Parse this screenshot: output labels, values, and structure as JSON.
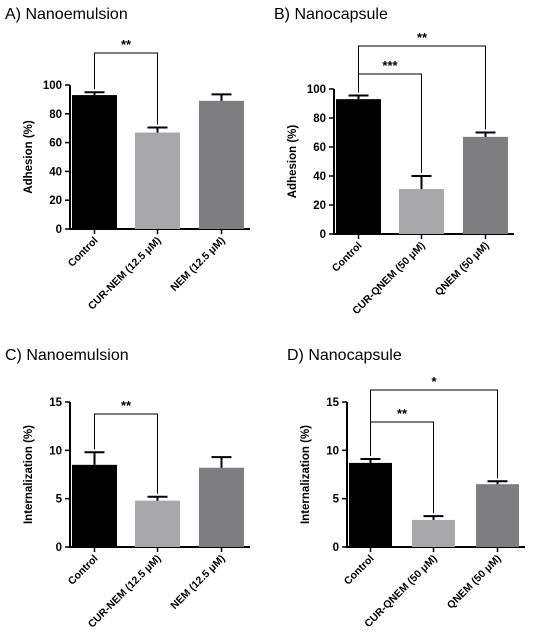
{
  "chart_data": [
    {
      "type": "bar",
      "title": "A) Nanoemulsion",
      "ylabel": "Adhesion (%)",
      "xlabel": "",
      "ylim": [
        0,
        100
      ],
      "yticks": [
        "0",
        "20",
        "40",
        "60",
        "80",
        "100"
      ],
      "categories": [
        "Control",
        "CUR-NEM (12.5 μM)",
        "NEM (12.5 μM)"
      ],
      "values": [
        93,
        67,
        89
      ],
      "errors": [
        2,
        3.5,
        4.5
      ],
      "bar_colors": [
        "#000000",
        "#a8a8ab",
        "#7e7e80"
      ],
      "significance": [
        {
          "from": 0,
          "to": 1,
          "label": "**"
        }
      ]
    },
    {
      "type": "bar",
      "title": "B) Nanocapsule",
      "ylabel": "Adhesion (%)",
      "xlabel": "",
      "ylim": [
        0,
        100
      ],
      "yticks": [
        "0",
        "20",
        "40",
        "60",
        "80",
        "100"
      ],
      "categories": [
        "Control",
        "CUR-QNEM (50 μM)",
        "QNEM (50 μM)"
      ],
      "values": [
        93,
        31,
        67
      ],
      "errors": [
        2.5,
        9,
        3
      ],
      "bar_colors": [
        "#000000",
        "#a8a8ab",
        "#7e7e80"
      ],
      "significance": [
        {
          "from": 0,
          "to": 1,
          "label": "***"
        },
        {
          "from": 0,
          "to": 2,
          "label": "**"
        }
      ]
    },
    {
      "type": "bar",
      "title": "C) Nanoemulsion",
      "ylabel": "Internalization (%)",
      "xlabel": "",
      "ylim": [
        0,
        15
      ],
      "yticks": [
        "0",
        "5",
        "10",
        "15"
      ],
      "categories": [
        "Control",
        "CUR-NEM (12.5 μM)",
        "NEM (12.5 μM)"
      ],
      "values": [
        8.5,
        4.8,
        8.2
      ],
      "errors": [
        1.3,
        0.4,
        1.1
      ],
      "bar_colors": [
        "#000000",
        "#a8a8ab",
        "#7e7e80"
      ],
      "significance": [
        {
          "from": 0,
          "to": 1,
          "label": "**"
        }
      ]
    },
    {
      "type": "bar",
      "title": "D) Nanocapsule",
      "ylabel": "Internalization (%)",
      "xlabel": "",
      "ylim": [
        0,
        15
      ],
      "yticks": [
        "0",
        "5",
        "10",
        "15"
      ],
      "categories": [
        "Control",
        "CUR-QNEM (50 μM)",
        "QNEM (50 μM)"
      ],
      "values": [
        8.7,
        2.8,
        6.5
      ],
      "errors": [
        0.4,
        0.4,
        0.3
      ],
      "bar_colors": [
        "#000000",
        "#a8a8ab",
        "#7e7e80"
      ],
      "significance": [
        {
          "from": 0,
          "to": 1,
          "label": "**"
        },
        {
          "from": 0,
          "to": 2,
          "label": "*"
        }
      ]
    }
  ]
}
